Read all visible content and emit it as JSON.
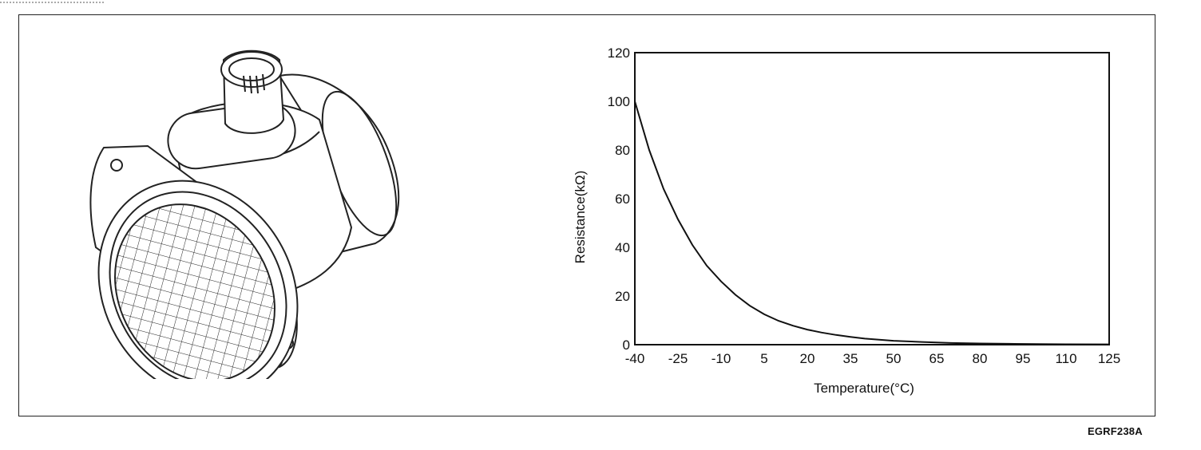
{
  "figure_code": "EGRF238A",
  "chart_data": {
    "type": "line",
    "title": "",
    "xlabel": "Temperature(°C)",
    "ylabel": "Resistance(kΩ)",
    "xlim": [
      -40,
      125
    ],
    "ylim": [
      0,
      120
    ],
    "x_ticks": [
      -40,
      -25,
      -10,
      5,
      20,
      35,
      50,
      65,
      80,
      95,
      110,
      125
    ],
    "y_ticks": [
      0,
      20,
      40,
      60,
      80,
      100,
      120
    ],
    "grid": false,
    "legend": "none",
    "series": [
      {
        "x": [
          -40,
          -35,
          -30,
          -25,
          -20,
          -15,
          -10,
          -5,
          0,
          5,
          10,
          15,
          20,
          25,
          30,
          35,
          40,
          50,
          60,
          70,
          80,
          90,
          100,
          110,
          125
        ],
        "y": [
          100,
          80,
          64,
          51.5,
          41,
          32.5,
          26,
          20.5,
          16,
          12.5,
          9.8,
          7.8,
          6.2,
          5,
          4,
          3.2,
          2.5,
          1.6,
          1.1,
          0.7,
          0.5,
          0.35,
          0.25,
          0.18,
          0.12
        ]
      }
    ],
    "line_color": "#111111"
  }
}
